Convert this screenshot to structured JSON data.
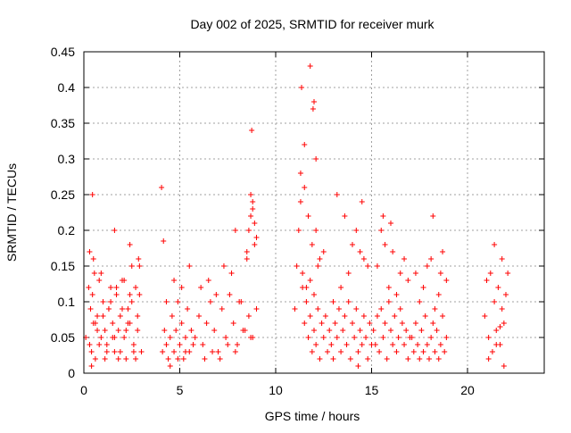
{
  "chart_data": {
    "type": "scatter",
    "title": "Day 002 of 2025, SRMTID for receiver murk",
    "xlabel": "GPS time / hours",
    "ylabel": "SRMTID / TECUs",
    "xlim": [
      0,
      24
    ],
    "ylim": [
      0,
      0.45
    ],
    "x_ticks": [
      0,
      5,
      10,
      15,
      20
    ],
    "y_ticks": [
      0,
      0.05,
      0.1,
      0.15,
      0.2,
      0.25,
      0.3,
      0.35,
      0.4,
      0.45
    ],
    "x_tick_labels": [
      "0",
      "5",
      "10",
      "15",
      "20"
    ],
    "y_tick_labels": [
      "0",
      "0.05",
      "0.1",
      "0.15",
      "0.2",
      "0.25",
      "0.3",
      "0.35",
      "0.4",
      "0.45"
    ],
    "grid": true,
    "marker": "+",
    "color": "#ff0000",
    "series": [
      {
        "values_x": [
          0.1,
          0.25,
          0.3,
          0.35,
          0.4,
          0.45,
          0.5,
          0.55,
          0.6,
          0.7,
          0.8,
          0.9,
          1.0,
          1.1,
          1.2,
          1.3,
          1.4,
          1.5,
          1.6,
          1.7,
          1.8,
          1.9,
          2.0,
          2.1,
          2.2,
          2.3,
          2.4,
          2.5,
          2.6,
          2.7,
          2.8,
          2.9,
          3.0,
          0.4,
          0.6,
          0.8,
          1.0,
          1.2,
          1.4,
          1.6,
          1.8,
          2.0,
          2.2,
          2.4,
          2.6,
          2.8,
          0.5,
          0.9,
          1.3,
          1.7,
          2.1,
          2.5,
          2.9,
          0.3,
          0.7,
          1.1,
          1.5,
          1.9,
          2.3,
          2.7,
          0.45,
          1.6,
          2.4,
          2.85,
          4.1,
          4.2,
          4.3,
          4.4,
          4.5,
          4.6,
          4.7,
          4.8,
          4.9,
          5.0,
          5.1,
          5.2,
          5.3,
          5.4,
          5.5,
          5.6,
          5.7,
          4.3,
          4.7,
          5.1,
          5.5,
          4.5,
          4.9,
          5.3,
          4.15,
          4.05,
          5.8,
          6.0,
          6.2,
          6.4,
          6.6,
          6.8,
          7.0,
          7.2,
          7.4,
          7.6,
          7.8,
          8.0,
          8.2,
          8.4,
          8.6,
          8.8,
          9.0,
          6.1,
          6.5,
          6.9,
          7.3,
          7.7,
          8.1,
          8.5,
          8.9,
          6.3,
          6.7,
          7.1,
          7.5,
          7.9,
          8.3,
          8.7,
          8.5,
          8.6,
          8.7,
          8.8,
          8.9,
          9.0,
          8.7,
          8.8,
          8.75,
          7.9,
          11.0,
          11.1,
          11.2,
          11.3,
          11.4,
          11.5,
          11.6,
          11.7,
          11.8,
          11.9,
          12.0,
          12.1,
          12.2,
          12.3,
          12.4,
          12.5,
          12.6,
          12.7,
          12.8,
          12.9,
          13.0,
          11.3,
          11.5,
          11.7,
          11.9,
          12.1,
          12.3,
          12.5,
          11.4,
          11.6,
          11.8,
          12.0,
          12.2,
          11.35,
          11.8,
          11.95,
          12.0,
          11.5,
          12.1,
          13.1,
          13.2,
          13.3,
          13.4,
          13.5,
          13.6,
          13.7,
          13.8,
          13.9,
          14.0,
          14.1,
          14.2,
          14.3,
          14.4,
          14.5,
          14.6,
          14.7,
          14.8,
          14.9,
          15.0,
          13.2,
          13.6,
          14.0,
          14.4,
          14.8,
          13.4,
          13.8,
          14.2,
          14.6,
          14.5,
          14.3,
          13.0,
          15.1,
          15.2,
          15.3,
          15.4,
          15.5,
          15.6,
          15.7,
          15.8,
          15.9,
          16.0,
          16.1,
          16.2,
          16.3,
          16.4,
          16.5,
          16.6,
          16.7,
          16.8,
          16.9,
          17.0,
          15.3,
          15.7,
          16.1,
          16.5,
          16.9,
          15.5,
          15.9,
          16.3,
          16.7,
          15.6,
          16.0,
          17.1,
          17.2,
          17.3,
          17.4,
          17.5,
          17.6,
          17.7,
          17.8,
          17.9,
          18.0,
          18.1,
          18.2,
          18.3,
          18.4,
          18.5,
          18.6,
          18.7,
          18.8,
          18.9,
          17.3,
          17.7,
          18.1,
          18.5,
          18.9,
          17.5,
          17.9,
          18.3,
          18.7,
          18.2,
          18.6,
          20.9,
          21.0,
          21.1,
          21.2,
          21.3,
          21.4,
          21.5,
          21.6,
          21.7,
          21.8,
          21.9,
          22.0,
          22.1,
          21.1,
          21.5,
          21.9,
          21.4,
          21.8,
          21.7
        ],
        "values_y": [
          0.05,
          0.12,
          0.17,
          0.09,
          0.03,
          0.11,
          0.07,
          0.14,
          0.02,
          0.08,
          0.13,
          0.05,
          0.1,
          0.06,
          0.04,
          0.09,
          0.12,
          0.07,
          0.03,
          0.11,
          0.06,
          0.08,
          0.13,
          0.05,
          0.02,
          0.09,
          0.07,
          0.1,
          0.04,
          0.12,
          0.06,
          0.15,
          0.03,
          0.01,
          0.07,
          0.04,
          0.08,
          0.03,
          0.1,
          0.05,
          0.02,
          0.09,
          0.06,
          0.11,
          0.03,
          0.08,
          0.16,
          0.14,
          0.09,
          0.12,
          0.13,
          0.15,
          0.11,
          0.04,
          0.06,
          0.02,
          0.05,
          0.03,
          0.07,
          0.02,
          0.25,
          0.2,
          0.18,
          0.16,
          0.03,
          0.06,
          0.04,
          0.02,
          0.05,
          0.08,
          0.03,
          0.06,
          0.1,
          0.04,
          0.07,
          0.02,
          0.05,
          0.09,
          0.03,
          0.06,
          0.04,
          0.1,
          0.13,
          0.12,
          0.15,
          0.01,
          0.02,
          0.03,
          0.185,
          0.26,
          0.05,
          0.08,
          0.04,
          0.07,
          0.1,
          0.06,
          0.03,
          0.09,
          0.05,
          0.11,
          0.07,
          0.04,
          0.1,
          0.06,
          0.08,
          0.05,
          0.09,
          0.12,
          0.13,
          0.11,
          0.15,
          0.14,
          0.1,
          0.16,
          0.18,
          0.02,
          0.03,
          0.02,
          0.04,
          0.03,
          0.06,
          0.05,
          0.17,
          0.2,
          0.22,
          0.24,
          0.21,
          0.19,
          0.25,
          0.23,
          0.34,
          0.2,
          0.09,
          0.15,
          0.2,
          0.24,
          0.12,
          0.07,
          0.1,
          0.05,
          0.08,
          0.03,
          0.06,
          0.04,
          0.09,
          0.02,
          0.07,
          0.05,
          0.08,
          0.03,
          0.06,
          0.04,
          0.02,
          0.28,
          0.26,
          0.22,
          0.18,
          0.2,
          0.16,
          0.17,
          0.14,
          0.12,
          0.13,
          0.11,
          0.15,
          0.4,
          0.43,
          0.37,
          0.38,
          0.32,
          0.3,
          0.07,
          0.05,
          0.09,
          0.03,
          0.06,
          0.08,
          0.04,
          0.1,
          0.02,
          0.07,
          0.05,
          0.09,
          0.03,
          0.06,
          0.04,
          0.08,
          0.05,
          0.02,
          0.07,
          0.04,
          0.25,
          0.22,
          0.18,
          0.17,
          0.15,
          0.12,
          0.14,
          0.2,
          0.16,
          0.24,
          0.01,
          0.1,
          0.06,
          0.04,
          0.08,
          0.03,
          0.09,
          0.05,
          0.07,
          0.02,
          0.1,
          0.06,
          0.04,
          0.08,
          0.03,
          0.05,
          0.09,
          0.07,
          0.04,
          0.06,
          0.02,
          0.05,
          0.15,
          0.18,
          0.17,
          0.14,
          0.13,
          0.2,
          0.12,
          0.11,
          0.16,
          0.22,
          0.21,
          0.05,
          0.03,
          0.07,
          0.04,
          0.02,
          0.06,
          0.03,
          0.08,
          0.04,
          0.02,
          0.05,
          0.07,
          0.03,
          0.06,
          0.02,
          0.04,
          0.08,
          0.03,
          0.05,
          0.14,
          0.12,
          0.16,
          0.11,
          0.13,
          0.1,
          0.15,
          0.09,
          0.17,
          0.22,
          0.14,
          0.08,
          0.13,
          0.05,
          0.14,
          0.03,
          0.1,
          0.06,
          0.12,
          0.04,
          0.16,
          0.07,
          0.11,
          0.14,
          0.02,
          0.04,
          0.01,
          0.18,
          0.09,
          0.065
        ]
      }
    ]
  }
}
